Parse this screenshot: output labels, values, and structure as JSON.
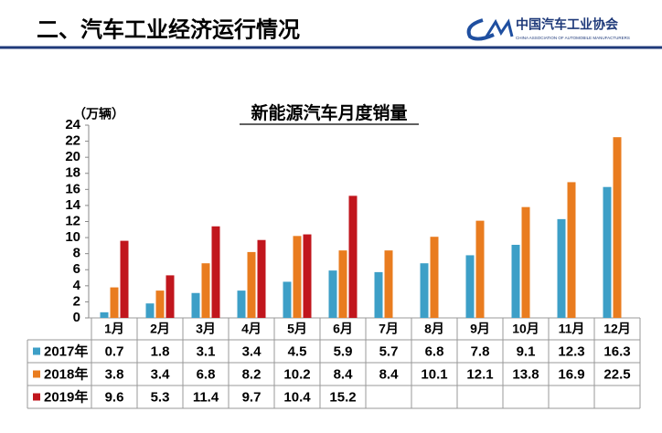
{
  "header": {
    "title": "二、汽车工业经济运行情况",
    "logo_cn": "中国汽车工业协会",
    "logo_en": "CHINA ASSOCIATION OF AUTOMOBILE MANUFACTURERS"
  },
  "chart_data": {
    "type": "bar",
    "title": "新能源汽车月度销量",
    "y_label": "（万辆）",
    "categories": [
      "1月",
      "2月",
      "3月",
      "4月",
      "5月",
      "6月",
      "7月",
      "8月",
      "9月",
      "10月",
      "11月",
      "12月"
    ],
    "series": [
      {
        "name": "2017年",
        "color": "#3d9fc7",
        "values": [
          0.7,
          1.8,
          3.1,
          3.4,
          4.5,
          5.9,
          5.7,
          6.8,
          7.8,
          9.1,
          12.3,
          16.3
        ]
      },
      {
        "name": "2018年",
        "color": "#e97c1f",
        "values": [
          3.8,
          3.4,
          6.8,
          8.2,
          10.2,
          8.4,
          8.4,
          10.1,
          12.1,
          13.8,
          16.9,
          22.5
        ]
      },
      {
        "name": "2019年",
        "color": "#c1161d",
        "values": [
          9.6,
          5.3,
          11.4,
          9.7,
          10.4,
          15.2,
          null,
          null,
          null,
          null,
          null,
          null
        ]
      }
    ],
    "ylim": [
      0,
      24
    ],
    "yticks": [
      0,
      2,
      4,
      6,
      8,
      10,
      12,
      14,
      16,
      18,
      20,
      22,
      24
    ]
  }
}
